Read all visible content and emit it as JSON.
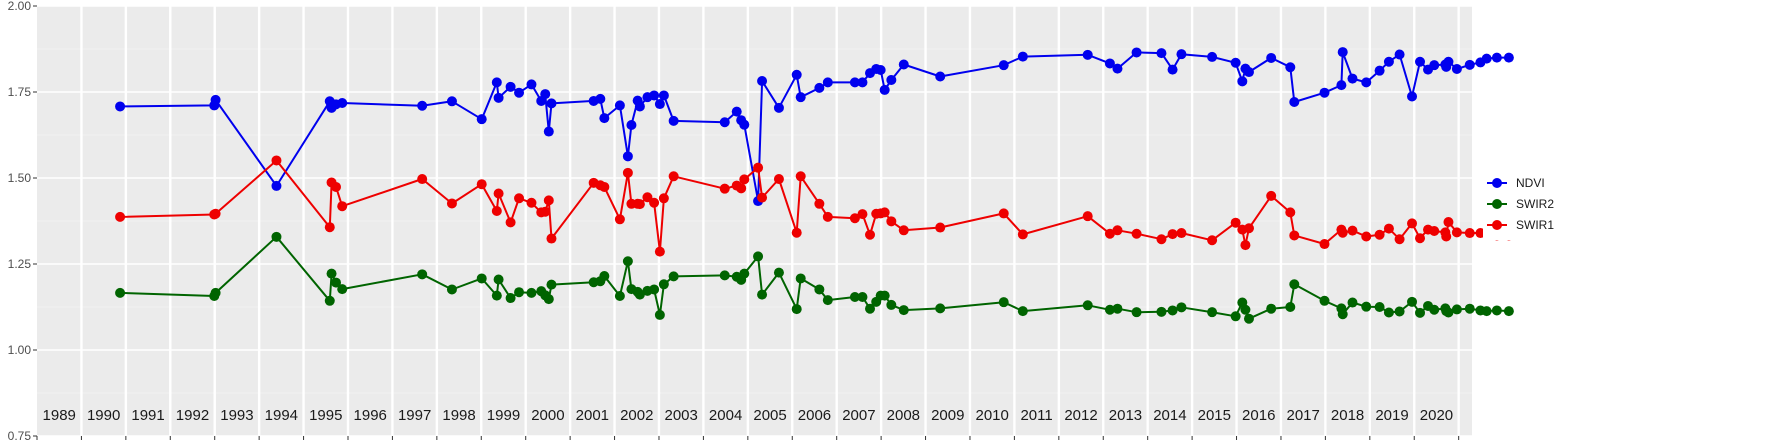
{
  "chart_data": {
    "type": "line",
    "title": "",
    "xlabel": "",
    "ylabel": "",
    "xlim": [
      1988.5,
      2020.8
    ],
    "ylim": [
      0.75,
      2.0
    ],
    "yticks": [
      "0.75",
      "1.00",
      "1.25",
      "1.50",
      "1.75",
      "2.00"
    ],
    "year_labels": [
      "1989",
      "1990",
      "1991",
      "1992",
      "1993",
      "1994",
      "1995",
      "1996",
      "1997",
      "1998",
      "1999",
      "2000",
      "2001",
      "2002",
      "2003",
      "2004",
      "2005",
      "2006",
      "2007",
      "2008",
      "2009",
      "2010",
      "2011",
      "2012",
      "2013",
      "2014",
      "2015",
      "2016",
      "2017",
      "2018",
      "2019",
      "2020"
    ],
    "grid": true,
    "legend_position": "right",
    "x": [
      1990.37,
      1992.49,
      1992.52,
      1993.89,
      1995.09,
      1995.13,
      1995.23,
      1995.37,
      1997.17,
      1997.84,
      1998.51,
      1998.85,
      1998.89,
      1999.16,
      1999.35,
      1999.63,
      1999.85,
      1999.94,
      2000.02,
      2000.08,
      2001.03,
      2001.18,
      2001.27,
      2001.62,
      2001.8,
      2001.88,
      2002.02,
      2002.07,
      2002.24,
      2002.39,
      2002.52,
      2002.61,
      2002.83,
      2003.98,
      2004.25,
      2004.35,
      2004.42,
      2004.73,
      2004.82,
      2005.2,
      2005.6,
      2005.69,
      2006.11,
      2006.3,
      2006.91,
      2007.08,
      2007.25,
      2007.39,
      2007.49,
      2007.58,
      2007.73,
      2008.01,
      2008.83,
      2010.26,
      2010.69,
      2012.15,
      2012.65,
      2012.82,
      2013.25,
      2013.81,
      2014.06,
      2014.26,
      2014.95,
      2015.48,
      2015.63,
      2015.7,
      2015.78,
      2016.28,
      2016.71,
      2016.8,
      2017.48,
      2017.86,
      2017.89,
      2018.11,
      2018.42,
      2018.72,
      2018.93,
      2019.17,
      2019.45,
      2019.63,
      2019.81,
      2019.95,
      2020.2,
      2020.22,
      2020.27,
      2020.46,
      2020.75,
      2020.99,
      2021.13,
      2021.36,
      2021.63
    ],
    "series": [
      {
        "name": "NDVI",
        "color": "#0000ee",
        "values": [
          1.708,
          1.711,
          1.727,
          1.477,
          1.723,
          1.704,
          1.714,
          1.718,
          1.71,
          1.723,
          1.671,
          1.778,
          1.733,
          1.765,
          1.748,
          1.772,
          1.724,
          1.744,
          1.635,
          1.717,
          1.724,
          1.73,
          1.674,
          1.711,
          1.563,
          1.654,
          1.725,
          1.708,
          1.735,
          1.74,
          1.715,
          1.74,
          1.666,
          1.662,
          1.693,
          1.668,
          1.655,
          1.433,
          1.782,
          1.704,
          1.8,
          1.735,
          1.762,
          1.778,
          1.778,
          1.778,
          1.805,
          1.817,
          1.814,
          1.756,
          1.785,
          1.83,
          1.795,
          1.828,
          1.853,
          1.858,
          1.833,
          1.818,
          1.865,
          1.863,
          1.815,
          1.86,
          1.852,
          1.835,
          1.781,
          1.818,
          1.808,
          1.849,
          1.822,
          1.721,
          1.748,
          1.77,
          1.866,
          1.789,
          1.778,
          1.812,
          1.838,
          1.859,
          1.737,
          1.838,
          1.815,
          1.828,
          1.83,
          1.823,
          1.838,
          1.817,
          1.829,
          1.836,
          1.847,
          1.85,
          1.85
        ]
      },
      {
        "name": "SWIR2",
        "color": "#006400",
        "values": [
          1.166,
          1.157,
          1.166,
          1.329,
          1.143,
          1.222,
          1.196,
          1.177,
          1.22,
          1.176,
          1.208,
          1.158,
          1.205,
          1.151,
          1.168,
          1.166,
          1.171,
          1.159,
          1.148,
          1.19,
          1.197,
          1.2,
          1.215,
          1.157,
          1.258,
          1.177,
          1.169,
          1.161,
          1.172,
          1.176,
          1.102,
          1.191,
          1.214,
          1.217,
          1.213,
          1.204,
          1.222,
          1.272,
          1.161,
          1.225,
          1.119,
          1.208,
          1.176,
          1.145,
          1.154,
          1.154,
          1.12,
          1.14,
          1.158,
          1.158,
          1.131,
          1.116,
          1.121,
          1.139,
          1.113,
          1.13,
          1.117,
          1.12,
          1.11,
          1.111,
          1.115,
          1.124,
          1.11,
          1.098,
          1.138,
          1.117,
          1.091,
          1.12,
          1.125,
          1.191,
          1.143,
          1.121,
          1.104,
          1.138,
          1.126,
          1.125,
          1.109,
          1.112,
          1.14,
          1.108,
          1.128,
          1.117,
          1.121,
          1.113,
          1.109,
          1.118,
          1.12,
          1.115,
          1.113,
          1.115,
          1.113
        ]
      },
      {
        "name": "SWIR1",
        "color": "#ee0000",
        "values": [
          1.387,
          1.394,
          1.396,
          1.551,
          1.357,
          1.487,
          1.474,
          1.418,
          1.497,
          1.426,
          1.482,
          1.404,
          1.455,
          1.371,
          1.441,
          1.428,
          1.4,
          1.402,
          1.435,
          1.324,
          1.486,
          1.479,
          1.474,
          1.38,
          1.515,
          1.425,
          1.425,
          1.424,
          1.444,
          1.428,
          1.286,
          1.441,
          1.505,
          1.469,
          1.478,
          1.47,
          1.496,
          1.53,
          1.443,
          1.497,
          1.341,
          1.505,
          1.425,
          1.387,
          1.383,
          1.395,
          1.335,
          1.396,
          1.397,
          1.4,
          1.374,
          1.348,
          1.356,
          1.397,
          1.336,
          1.389,
          1.338,
          1.348,
          1.338,
          1.322,
          1.337,
          1.34,
          1.319,
          1.37,
          1.35,
          1.305,
          1.354,
          1.448,
          1.4,
          1.333,
          1.308,
          1.35,
          1.341,
          1.347,
          1.33,
          1.335,
          1.353,
          1.322,
          1.368,
          1.325,
          1.35,
          1.346,
          1.342,
          1.33,
          1.372,
          1.342,
          1.34,
          1.34,
          1.338,
          1.333,
          1.333
        ]
      }
    ]
  }
}
